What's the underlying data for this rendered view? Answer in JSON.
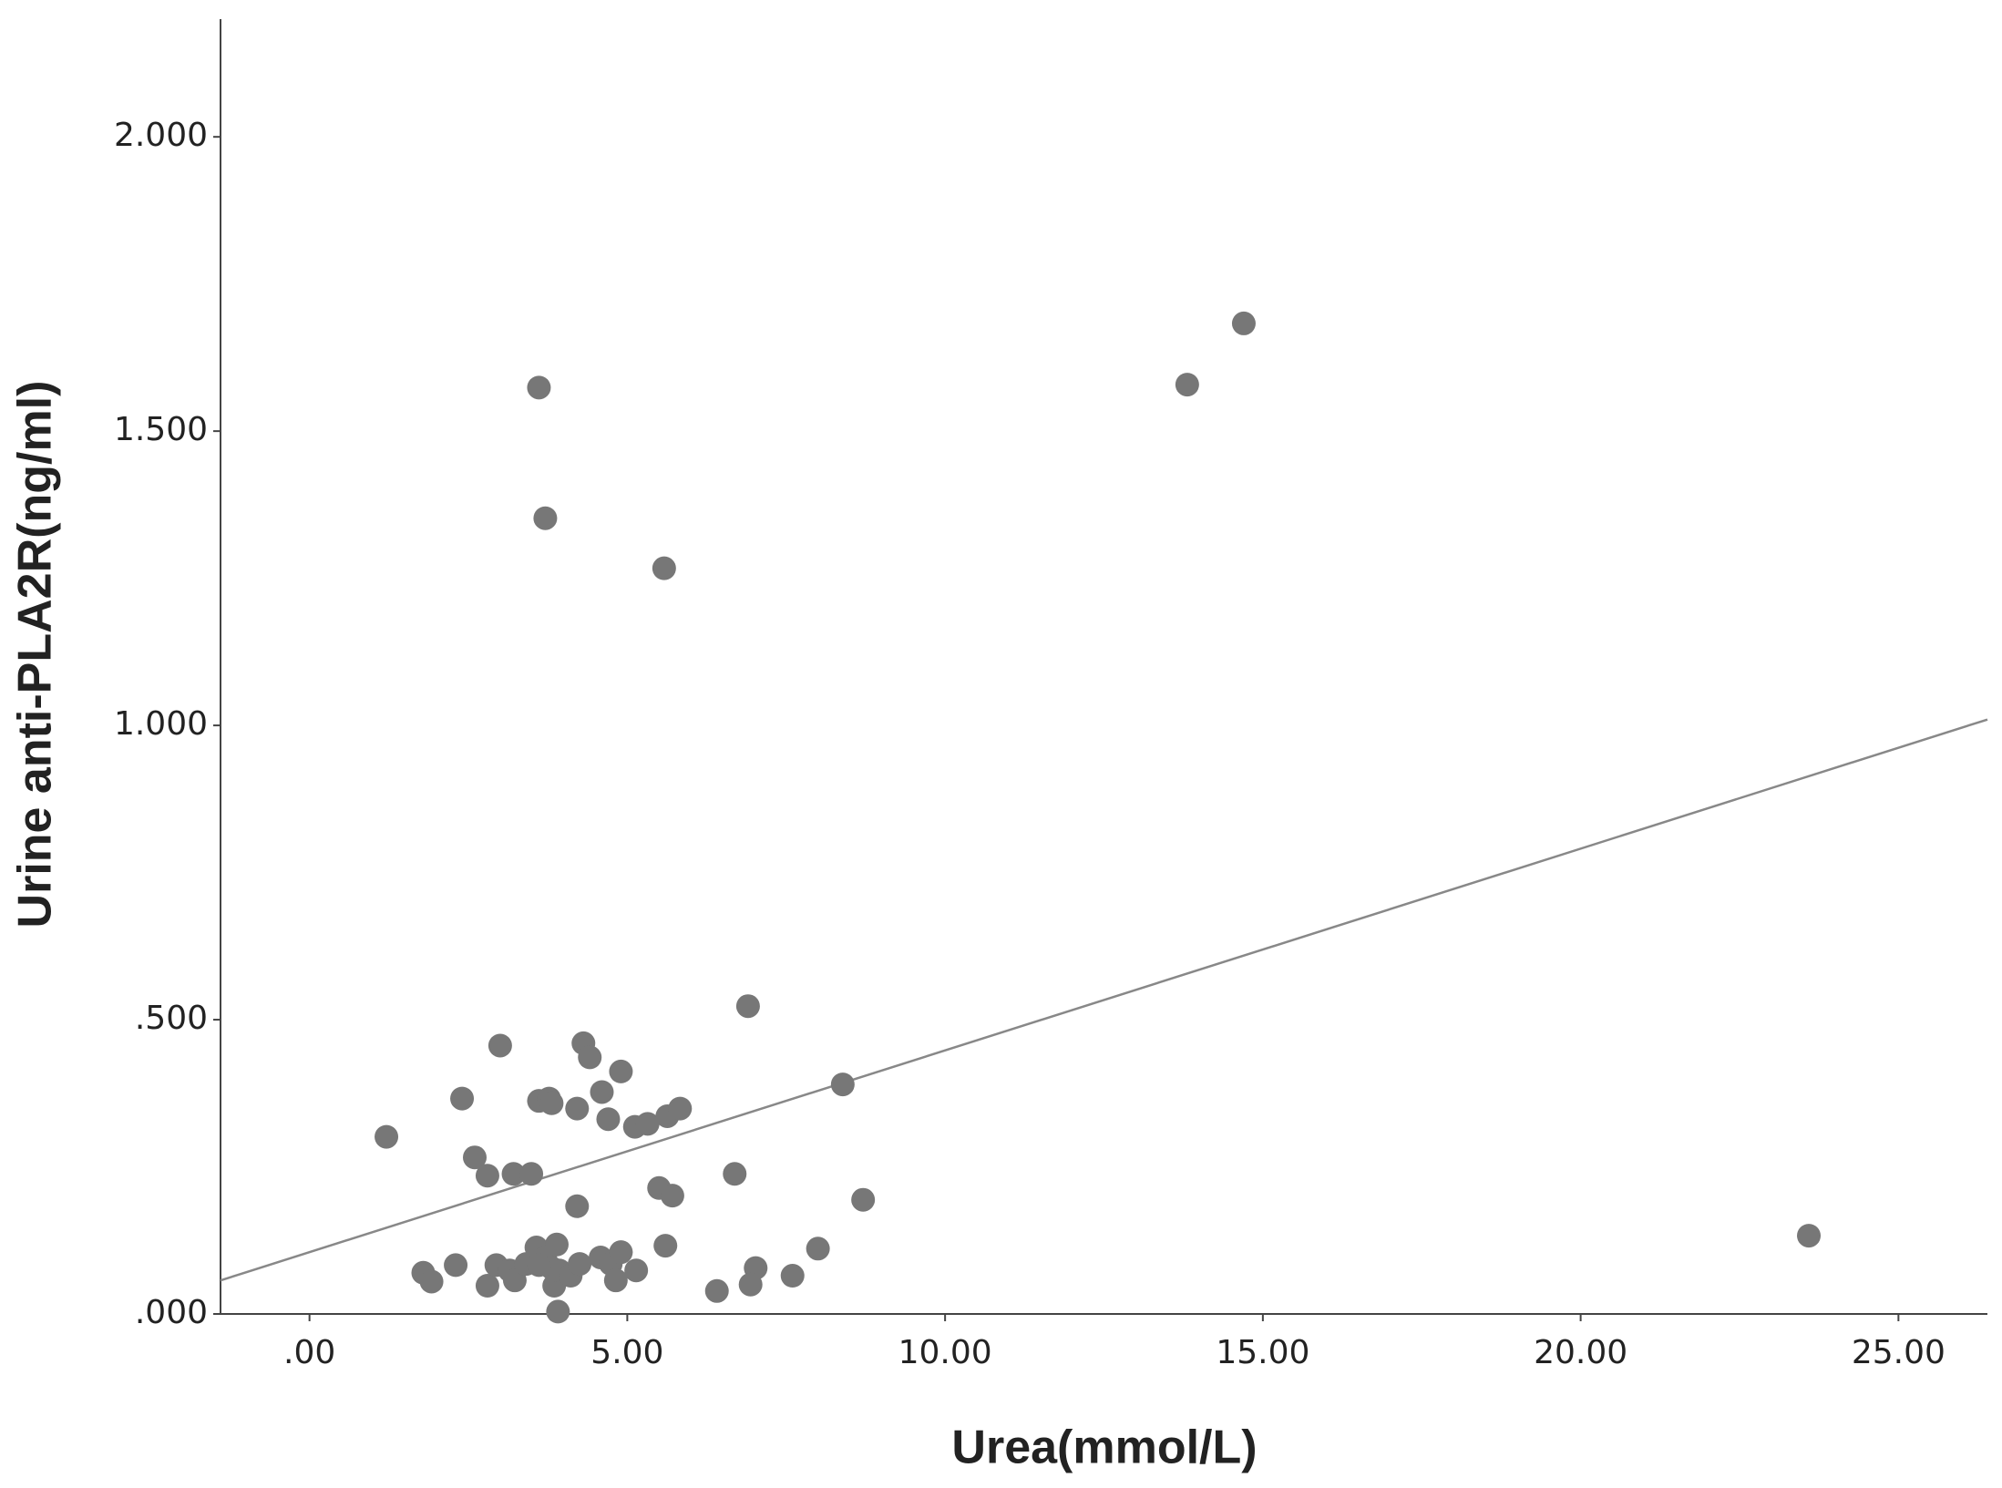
{
  "chart_data": {
    "type": "scatter",
    "x_label": "Urea(mmol/L)",
    "y_label": "Urine anti-PLA2R(ng/ml)",
    "xlim": [
      -1.4,
      26.4
    ],
    "ylim": [
      0,
      2.2
    ],
    "xticks": [
      {
        "value": 0,
        "label": ".00"
      },
      {
        "value": 5,
        "label": "5.00"
      },
      {
        "value": 10,
        "label": "10.00"
      },
      {
        "value": 15,
        "label": "15.00"
      },
      {
        "value": 20,
        "label": "20.00"
      },
      {
        "value": 25,
        "label": "25.00"
      }
    ],
    "yticks": [
      {
        "value": 0,
        "label": ".000"
      },
      {
        "value": 0.5,
        "label": ".500"
      },
      {
        "value": 1,
        "label": "1.000"
      },
      {
        "value": 1.5,
        "label": "1.500"
      },
      {
        "value": 2,
        "label": "2.000"
      }
    ],
    "series": [
      {
        "color": "#777777",
        "x": [
          1.21,
          3.61,
          3.71,
          5.58,
          13.81,
          14.7,
          23.59,
          6.9,
          8.39,
          8.71,
          8.0,
          7.6,
          7.02,
          6.94,
          6.41,
          6.69,
          3.0,
          2.4,
          2.6,
          2.8,
          3.21,
          3.49,
          4.31,
          4.41,
          4.9,
          4.6,
          3.61,
          3.77,
          3.81,
          4.21,
          4.7,
          5.12,
          5.32,
          5.63,
          5.83,
          5.5,
          5.71,
          4.21,
          5.6,
          1.79,
          1.92,
          2.3,
          2.8,
          2.94,
          3.15,
          3.23,
          3.41,
          3.57,
          3.71,
          3.81,
          3.89,
          3.85,
          3.93,
          3.91,
          4.11,
          4.25,
          4.58,
          4.74,
          4.9,
          4.82,
          5.14,
          3.61
        ],
        "values": [
          0.301,
          1.574,
          1.352,
          1.267,
          1.579,
          1.683,
          0.133,
          0.523,
          0.39,
          0.194,
          0.111,
          0.065,
          0.078,
          0.05,
          0.039,
          0.238,
          0.456,
          0.366,
          0.266,
          0.235,
          0.238,
          0.238,
          0.46,
          0.436,
          0.412,
          0.377,
          0.362,
          0.366,
          0.358,
          0.349,
          0.331,
          0.318,
          0.323,
          0.336,
          0.349,
          0.214,
          0.201,
          0.183,
          0.116,
          0.07,
          0.055,
          0.083,
          0.048,
          0.083,
          0.074,
          0.057,
          0.085,
          0.113,
          0.096,
          0.078,
          0.118,
          0.048,
          0.074,
          0.004,
          0.065,
          0.085,
          0.096,
          0.085,
          0.105,
          0.057,
          0.074,
          0.083
        ]
      }
    ],
    "fit_line": {
      "color": "#888888",
      "x": [
        -1.4,
        26.4
      ],
      "y": [
        0.057,
        1.01
      ]
    }
  }
}
